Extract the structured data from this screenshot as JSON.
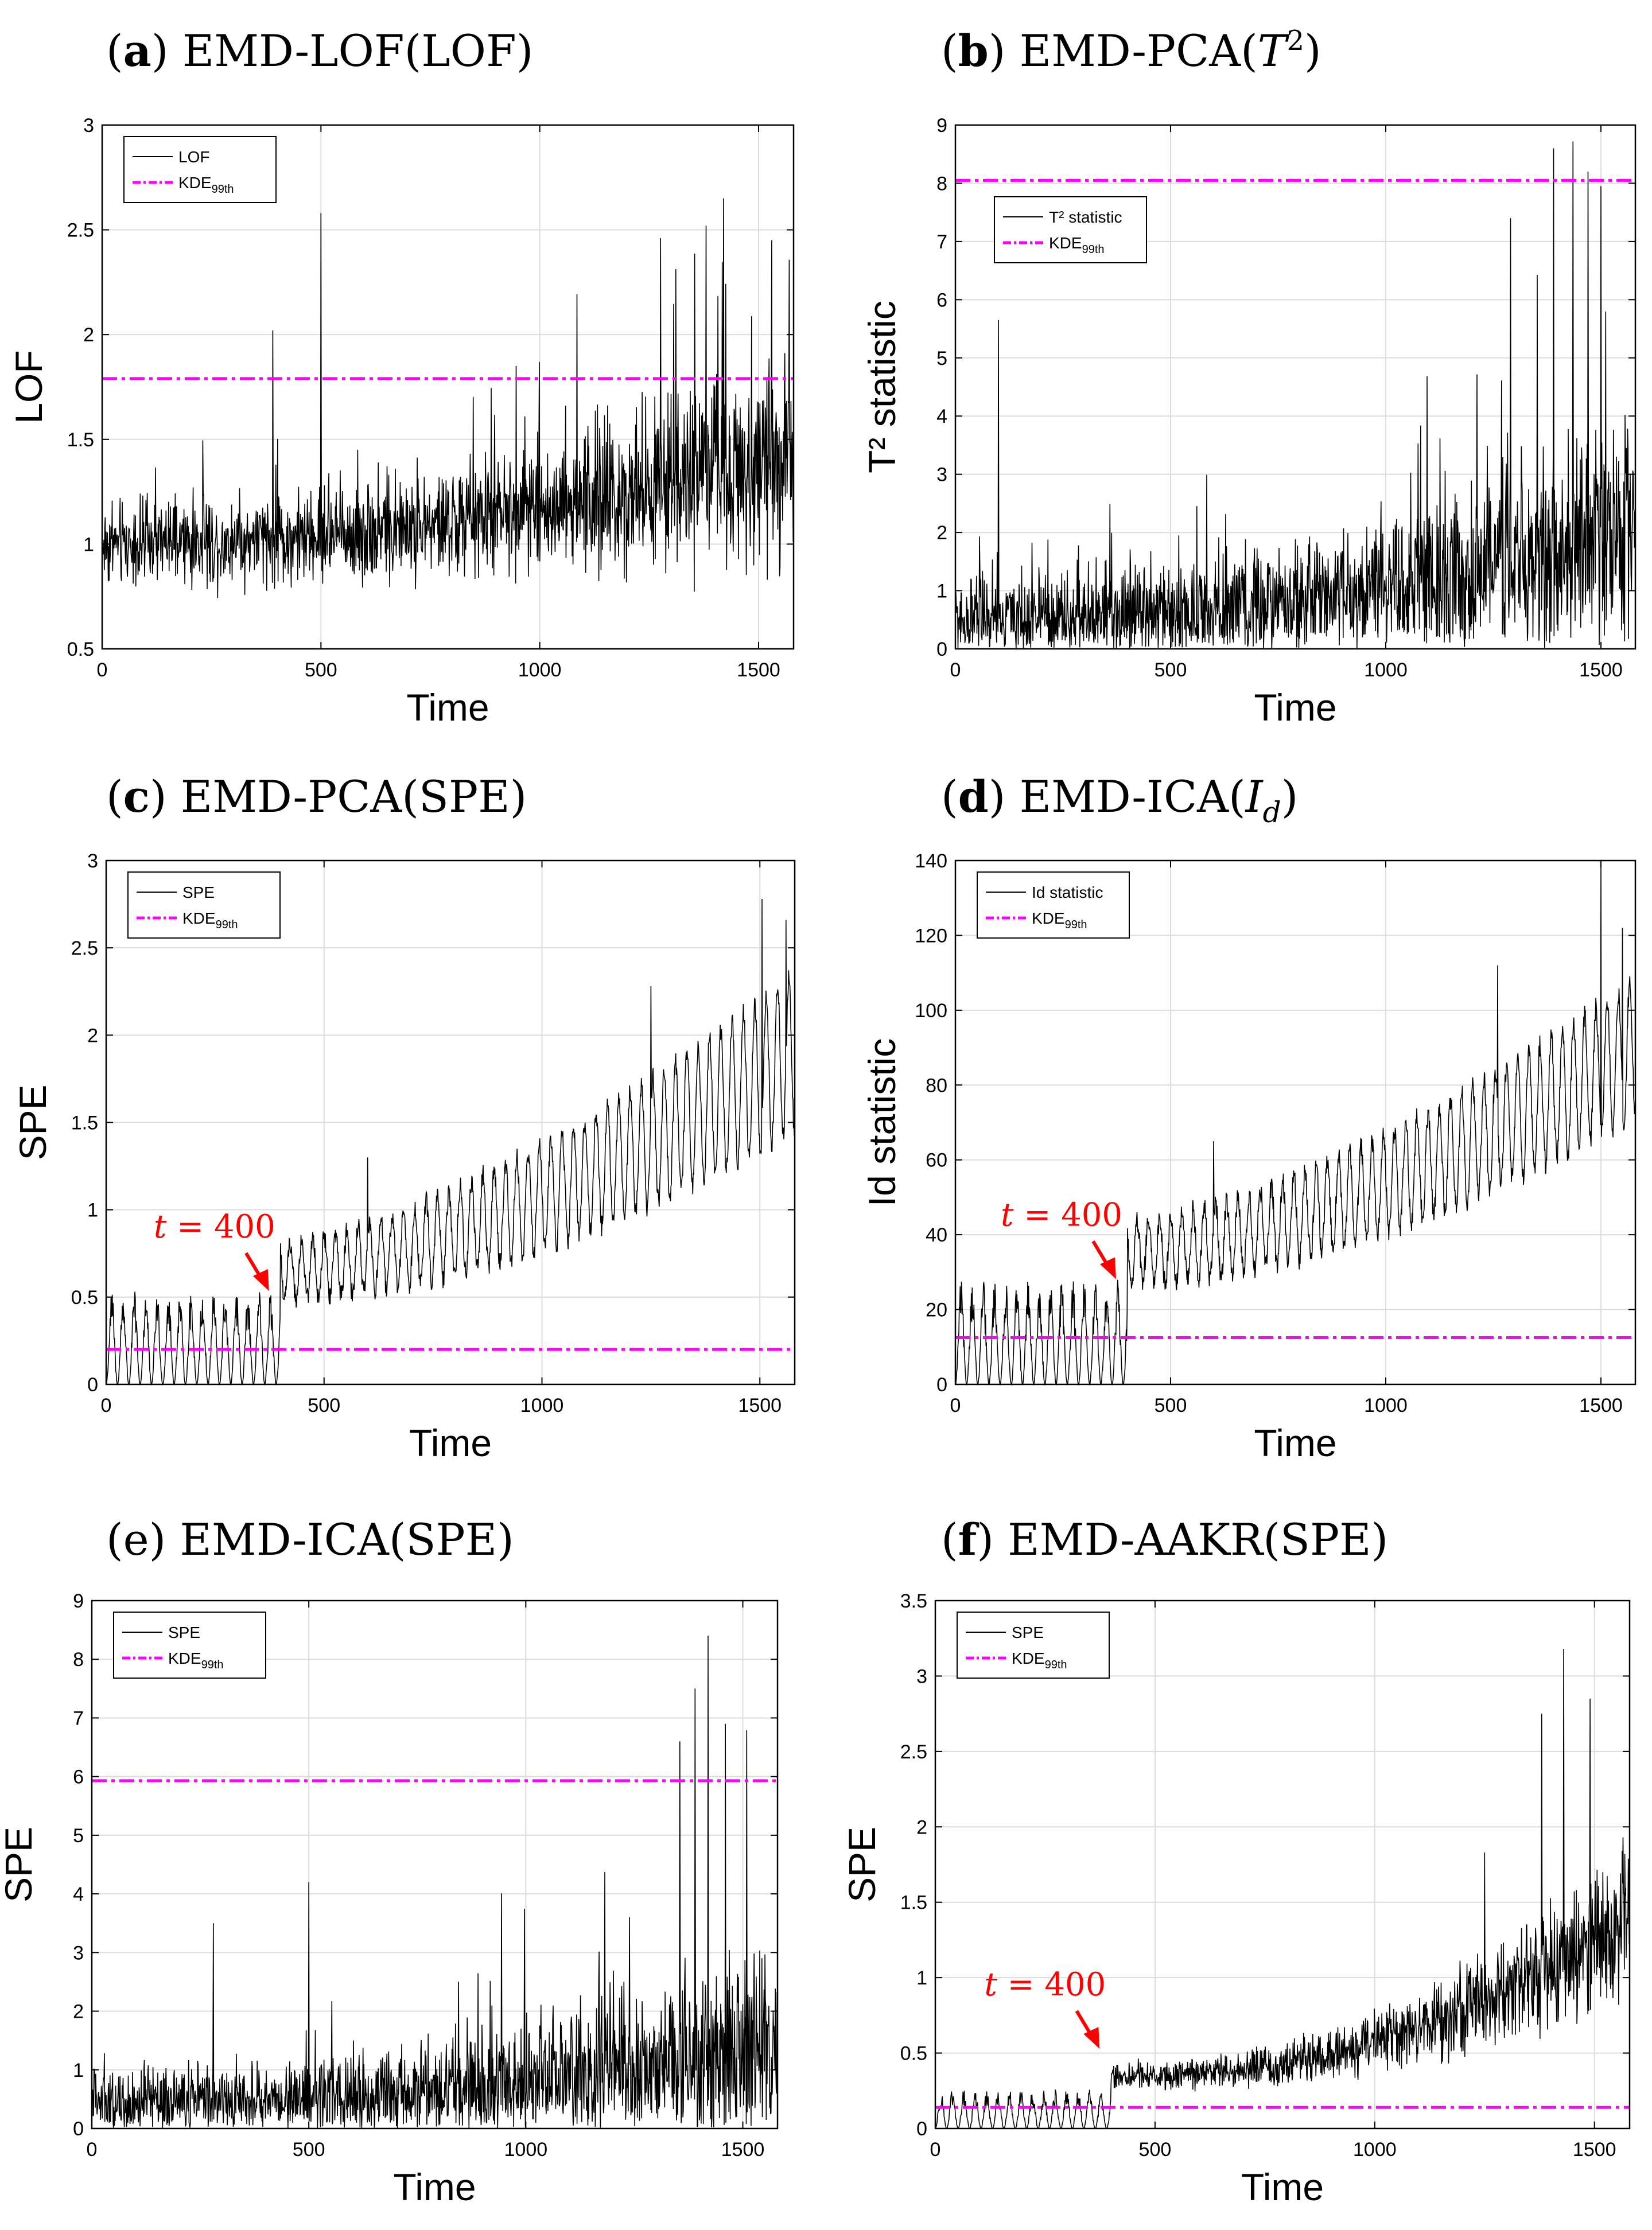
{
  "colors": {
    "series": "#000000",
    "threshold": "#ff00ff",
    "annotation": "#ff0000"
  },
  "chart_data": [
    {
      "id": "a",
      "type": "line",
      "title_letter": "a",
      "title_open": "(",
      "title_close": ")",
      "title_text": " EMD-LOF(LOF)",
      "xlabel": "Time",
      "ylabel": "LOF",
      "xlim": [
        0,
        1580
      ],
      "ylim": [
        0.5,
        3
      ],
      "xticks": [
        0,
        500,
        1000,
        1500
      ],
      "xtick_labels": [
        "0",
        "500",
        "1000",
        "1500"
      ],
      "yticks": [
        0.5,
        1,
        1.5,
        2,
        2.5,
        3
      ],
      "ytick_labels": [
        "0.5",
        "1",
        "1.5",
        "2",
        "2.5",
        "3"
      ],
      "legend_position": "top-left",
      "legend": [
        "LOF",
        "KDE"
      ],
      "legend_sub": "99th",
      "threshold": 1.79,
      "series_model": {
        "kind": "noise",
        "base_start": 1.0,
        "base_end": 1.45,
        "spread": 0.14,
        "spike_prob": 0.04,
        "spike_height": 0.9,
        "min": 0.64
      },
      "spikes": [
        {
          "x": 500,
          "y": 2.58
        },
        {
          "x": 1420,
          "y": 2.65
        },
        {
          "x": 1530,
          "y": 2.45
        },
        {
          "x": 390,
          "y": 2.02
        },
        {
          "x": 1380,
          "y": 2.52
        }
      ]
    },
    {
      "id": "b",
      "type": "line",
      "title_letter": "b",
      "title_open": "(",
      "title_close": ")",
      "title_text": " EMD-PCA(",
      "title_math": "T",
      "title_sup": "2",
      "title_end": ")",
      "xlabel": "Time",
      "ylabel": "T² statistic",
      "xlim": [
        0,
        1580
      ],
      "ylim": [
        0,
        9
      ],
      "xticks": [
        0,
        500,
        1000,
        1500
      ],
      "xtick_labels": [
        "0",
        "500",
        "1000",
        "1500"
      ],
      "yticks": [
        0,
        1,
        2,
        3,
        4,
        5,
        6,
        7,
        8,
        9
      ],
      "ytick_labels": [
        "0",
        "1",
        "2",
        "3",
        "4",
        "5",
        "6",
        "7",
        "8",
        "9"
      ],
      "legend_position": "upper-left",
      "legend": [
        "T² statistic",
        "KDE"
      ],
      "legend_sub": "99th",
      "threshold": 8.05,
      "series_model": {
        "kind": "noise",
        "base_start": 0.5,
        "base_end": 2.0,
        "spread": 0.55,
        "spike_prob": 0.035,
        "spike_height": 3.6,
        "min": 0.0
      },
      "spikes": [
        {
          "x": 100,
          "y": 5.65
        },
        {
          "x": 1390,
          "y": 8.6
        },
        {
          "x": 1435,
          "y": 8.72
        },
        {
          "x": 1470,
          "y": 8.2
        },
        {
          "x": 1500,
          "y": 7.95
        },
        {
          "x": 1290,
          "y": 7.4
        }
      ]
    },
    {
      "id": "c",
      "type": "line",
      "title_letter": "c",
      "title_open": "(",
      "title_close": ")",
      "title_text": " EMD-PCA(SPE)",
      "xlabel": "Time",
      "ylabel": "SPE",
      "xlim": [
        0,
        1580
      ],
      "ylim": [
        0,
        3
      ],
      "xticks": [
        0,
        500,
        1000,
        1500
      ],
      "xtick_labels": [
        "0",
        "500",
        "1000",
        "1500"
      ],
      "yticks": [
        0,
        0.5,
        1,
        1.5,
        2,
        2.5,
        3
      ],
      "ytick_labels": [
        "0",
        "0.5",
        "1",
        "1.5",
        "2",
        "2.5",
        "3"
      ],
      "legend_position": "top-left",
      "legend": [
        "SPE",
        "KDE"
      ],
      "legend_sub": "99th",
      "threshold": 0.2,
      "annotation": {
        "text_t": "t",
        "text_rest": " = 400",
        "x": 400
      },
      "series_model": {
        "kind": "osc",
        "pre_amp": 0.27,
        "post_start": 0.65,
        "post_end": 1.9,
        "amp_start": 0.15,
        "amp_end": 0.45,
        "period": 26,
        "noise": 0.12
      },
      "spikes": [
        {
          "x": 1505,
          "y": 2.78
        },
        {
          "x": 1250,
          "y": 2.28
        },
        {
          "x": 1560,
          "y": 2.66
        },
        {
          "x": 600,
          "y": 1.3
        }
      ]
    },
    {
      "id": "d",
      "type": "line",
      "title_letter": "d",
      "title_open": "(",
      "title_close": ")",
      "title_text": " EMD-ICA(",
      "title_math": "I",
      "title_msub": "d",
      "title_end": ")",
      "xlabel": "Time",
      "ylabel": "Id statistic",
      "xlim": [
        0,
        1580
      ],
      "ylim": [
        0,
        140
      ],
      "xticks": [
        0,
        500,
        1000,
        1500
      ],
      "xtick_labels": [
        "0",
        "500",
        "1000",
        "1500"
      ],
      "yticks": [
        0,
        20,
        40,
        60,
        80,
        100,
        120,
        140
      ],
      "ytick_labels": [
        "0",
        "20",
        "40",
        "60",
        "80",
        "100",
        "120",
        "140"
      ],
      "legend_position": "top-left",
      "legend": [
        "Id statistic",
        "KDE"
      ],
      "legend_sub": "99th",
      "threshold": 12.5,
      "annotation": {
        "text_t": "t",
        "text_rest": " = 400",
        "x": 400
      },
      "series_model": {
        "kind": "osc",
        "pre_amp": 14,
        "post_start": 35,
        "post_end": 90,
        "amp_start": 8,
        "amp_end": 18,
        "period": 26,
        "noise": 6
      },
      "spikes": [
        {
          "x": 1500,
          "y": 139
        },
        {
          "x": 1260,
          "y": 112
        },
        {
          "x": 1550,
          "y": 122
        },
        {
          "x": 600,
          "y": 65
        }
      ]
    },
    {
      "id": "e",
      "type": "line",
      "title_letter": "",
      "title_open": "",
      "title_close": "",
      "title_text": "(e) EMD-ICA(SPE)",
      "xlabel": "Time",
      "ylabel": "SPE",
      "xlim": [
        0,
        1580
      ],
      "ylim": [
        0,
        9
      ],
      "xticks": [
        0,
        500,
        1000,
        1500
      ],
      "xtick_labels": [
        "0",
        "500",
        "1000",
        "1500"
      ],
      "yticks": [
        0,
        1,
        2,
        3,
        4,
        5,
        6,
        7,
        8,
        9
      ],
      "ytick_labels": [
        "0",
        "1",
        "2",
        "3",
        "4",
        "5",
        "6",
        "7",
        "8",
        "9"
      ],
      "legend_position": "top-left",
      "legend": [
        "SPE",
        "KDE"
      ],
      "legend_sub": "99th",
      "threshold": 5.93,
      "series_model": {
        "kind": "noise",
        "base_start": 0.4,
        "base_end": 1.4,
        "spread": 0.5,
        "spike_prob": 0.03,
        "spike_height": 3.2,
        "min": 0.0
      },
      "spikes": [
        {
          "x": 1420,
          "y": 8.4
        },
        {
          "x": 1390,
          "y": 7.5
        },
        {
          "x": 1460,
          "y": 6.9
        },
        {
          "x": 1355,
          "y": 6.6
        },
        {
          "x": 500,
          "y": 4.2
        },
        {
          "x": 280,
          "y": 3.5
        }
      ]
    },
    {
      "id": "f",
      "type": "line",
      "title_letter": "f",
      "title_open": "(",
      "title_close": ")",
      "title_text": " EMD-AAKR(SPE)",
      "xlabel": "Time",
      "ylabel": "SPE",
      "xlim": [
        0,
        1580
      ],
      "ylim": [
        0,
        3.5
      ],
      "xticks": [
        0,
        500,
        1000,
        1500
      ],
      "xtick_labels": [
        "0",
        "500",
        "1000",
        "1500"
      ],
      "yticks": [
        0,
        0.5,
        1,
        1.5,
        2,
        2.5,
        3,
        3.5
      ],
      "ytick_labels": [
        "0",
        "0.5",
        "1",
        "1.5",
        "2",
        "2.5",
        "3",
        "3.5"
      ],
      "legend_position": "top-left",
      "legend": [
        "SPE",
        "KDE"
      ],
      "legend_sub": "99th",
      "threshold": 0.14,
      "annotation": {
        "text_t": "t",
        "text_rest": " = 400",
        "x": 400
      },
      "series_model": {
        "kind": "aakr",
        "pre_amp": 0.13,
        "post_start": 0.35,
        "post_end": 1.4,
        "spread_start": 0.08,
        "spread_end": 0.45
      },
      "spikes": [
        {
          "x": 1430,
          "y": 3.18
        },
        {
          "x": 1490,
          "y": 2.85
        },
        {
          "x": 1250,
          "y": 1.83
        },
        {
          "x": 1380,
          "y": 2.75
        }
      ]
    }
  ]
}
